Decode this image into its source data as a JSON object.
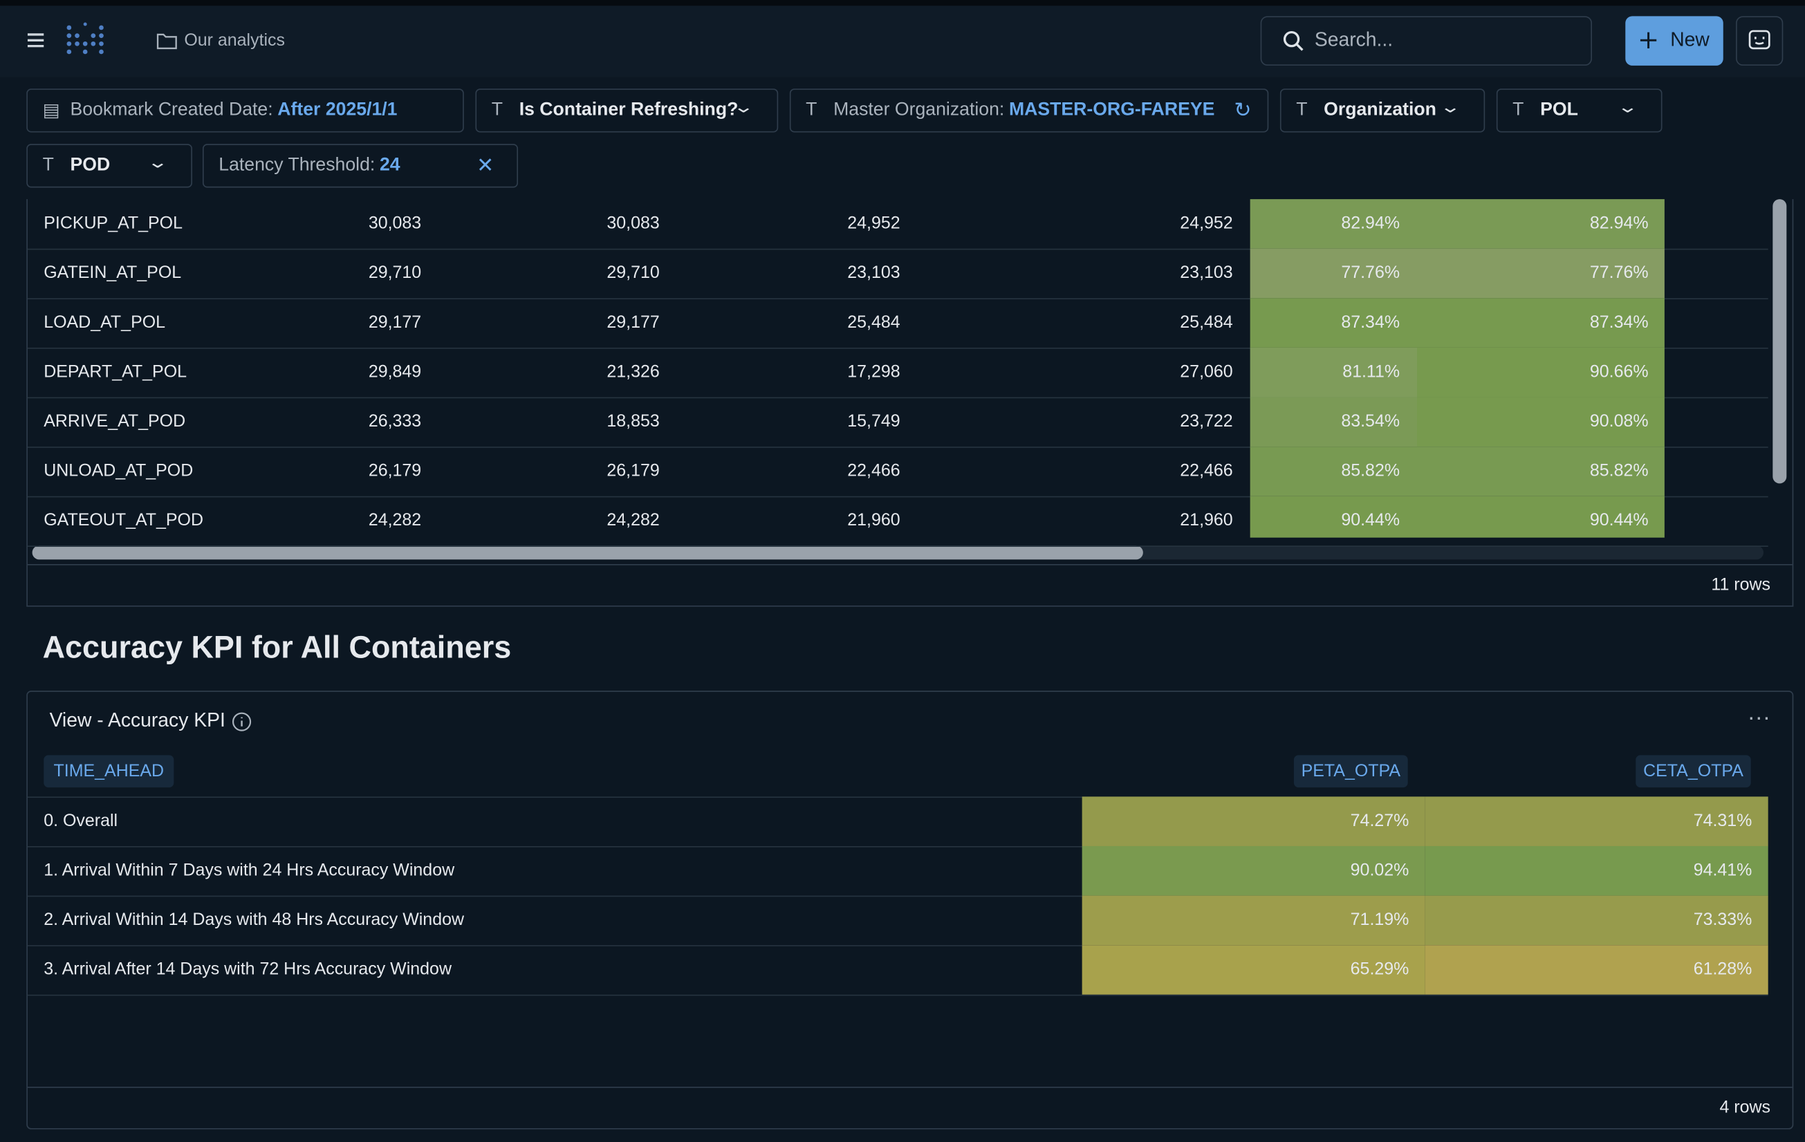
{
  "header": {
    "breadcrumb": "Our analytics",
    "search_placeholder": "Search...",
    "new_button": "New"
  },
  "filters": [
    {
      "label": "Bookmark Created Date:",
      "value": "After 2025/1/1"
    },
    {
      "label": "Is Container Refreshing?"
    },
    {
      "label": "Master Organization:",
      "value": "MASTER-ORG-FAREYE"
    },
    {
      "label": "Organization"
    },
    {
      "label": "POL"
    },
    {
      "label": "POD"
    },
    {
      "label": "Latency Threshold:",
      "value": "24"
    }
  ],
  "table1": {
    "rows": [
      [
        "PICKUP_AT_POL",
        "30,083",
        "30,083",
        "24,952",
        "24,952",
        "82.94%",
        "82.94%"
      ],
      [
        "GATEIN_AT_POL",
        "29,710",
        "29,710",
        "23,103",
        "23,103",
        "77.76%",
        "77.76%"
      ],
      [
        "LOAD_AT_POL",
        "29,177",
        "29,177",
        "25,484",
        "25,484",
        "87.34%",
        "87.34%"
      ],
      [
        "DEPART_AT_POL",
        "29,849",
        "21,326",
        "17,298",
        "27,060",
        "81.11%",
        "90.66%"
      ],
      [
        "ARRIVE_AT_POD",
        "26,333",
        "18,853",
        "15,749",
        "23,722",
        "83.54%",
        "90.08%"
      ],
      [
        "UNLOAD_AT_POD",
        "26,179",
        "26,179",
        "22,466",
        "22,466",
        "85.82%",
        "85.82%"
      ],
      [
        "GATEOUT_AT_POD",
        "24,282",
        "24,282",
        "21,960",
        "21,960",
        "90.44%",
        "90.44%"
      ]
    ],
    "footer": "11 rows"
  },
  "section_title": "Accuracy KPI for All Containers",
  "table2": {
    "title": "View - Accuracy KPI",
    "columns": [
      "TIME_AHEAD",
      "PETA_OTPA",
      "CETA_OTPA"
    ],
    "rows": [
      [
        "0. Overall",
        "74.27%",
        "74.31%"
      ],
      [
        "1. Arrival Within 7 Days with 24 Hrs Accuracy Window",
        "90.02%",
        "94.41%"
      ],
      [
        "2. Arrival Within 14 Days with 48 Hrs Accuracy Window",
        "71.19%",
        "73.33%"
      ],
      [
        "3. Arrival After 14 Days with 72 Hrs Accuracy Window",
        "65.29%",
        "61.28%"
      ]
    ],
    "footer": "4 rows"
  }
}
